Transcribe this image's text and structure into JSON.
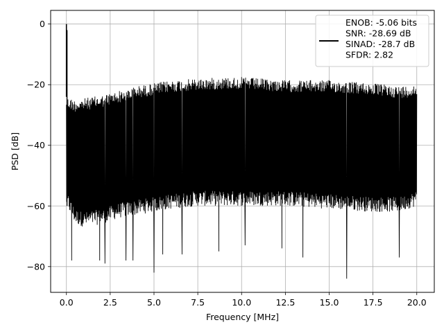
{
  "chart_data": {
    "type": "line",
    "title": "",
    "xlabel": "Frequency [MHz]",
    "ylabel": "PSD [dB]",
    "xlim": [
      -0.9,
      21.0
    ],
    "ylim": [
      -88.5,
      4.5
    ],
    "grid": true,
    "x_ticks": [
      0.0,
      2.5,
      5.0,
      7.5,
      10.0,
      12.5,
      15.0,
      17.5,
      20.0
    ],
    "x_tick_labels": [
      "0.0",
      "2.5",
      "5.0",
      "7.5",
      "10.0",
      "12.5",
      "15.0",
      "17.5",
      "20.0"
    ],
    "y_ticks": [
      0,
      -20,
      -40,
      -60,
      -80
    ],
    "y_tick_labels": [
      "0",
      "−20",
      "−40",
      "−60",
      "−80"
    ],
    "series": [
      {
        "color": "#000000",
        "style": "dense noise floor with a DC spike at 0 MHz",
        "dc_spike": {
          "x": 0.0,
          "y": 0.0
        },
        "upper_envelope": {
          "x": [
            0.0,
            0.5,
            1.0,
            2.0,
            3.0,
            4.0,
            5.0,
            6.0,
            7.5,
            9.0,
            10.0,
            12.5,
            15.0,
            17.5,
            19.0,
            20.0
          ],
          "y": [
            -24,
            -25,
            -24.5,
            -23.5,
            -22,
            -20.5,
            -19.5,
            -18.5,
            -18,
            -17.5,
            -17.5,
            -18.5,
            -18.5,
            -19.5,
            -20.5,
            -20
          ]
        },
        "lower_envelope": {
          "x": [
            0.0,
            0.5,
            1.0,
            2.0,
            3.0,
            4.0,
            5.0,
            6.0,
            7.5,
            9.0,
            10.0,
            12.5,
            15.0,
            17.5,
            19.0,
            20.0
          ],
          "y": [
            -60,
            -66,
            -67,
            -66,
            -64,
            -63,
            -62,
            -61,
            -60,
            -60,
            -60,
            -60,
            -61,
            -62,
            -62,
            -60
          ]
        },
        "deep_nulls": [
          {
            "x": 0.3,
            "y": -78
          },
          {
            "x": 1.9,
            "y": -78
          },
          {
            "x": 2.2,
            "y": -79
          },
          {
            "x": 3.4,
            "y": -78
          },
          {
            "x": 3.8,
            "y": -78
          },
          {
            "x": 5.0,
            "y": -82
          },
          {
            "x": 5.5,
            "y": -76
          },
          {
            "x": 6.6,
            "y": -76
          },
          {
            "x": 8.7,
            "y": -75
          },
          {
            "x": 10.2,
            "y": -73
          },
          {
            "x": 12.3,
            "y": -74
          },
          {
            "x": 13.5,
            "y": -77
          },
          {
            "x": 16.0,
            "y": -84
          },
          {
            "x": 19.0,
            "y": -77
          }
        ]
      }
    ],
    "legend": {
      "position": "top-right",
      "lines": [
        "ENOB: -5.06 bits",
        "SNR: -28.69 dB",
        "SINAD: -28.7 dB",
        "SFDR: 2.82"
      ]
    }
  }
}
